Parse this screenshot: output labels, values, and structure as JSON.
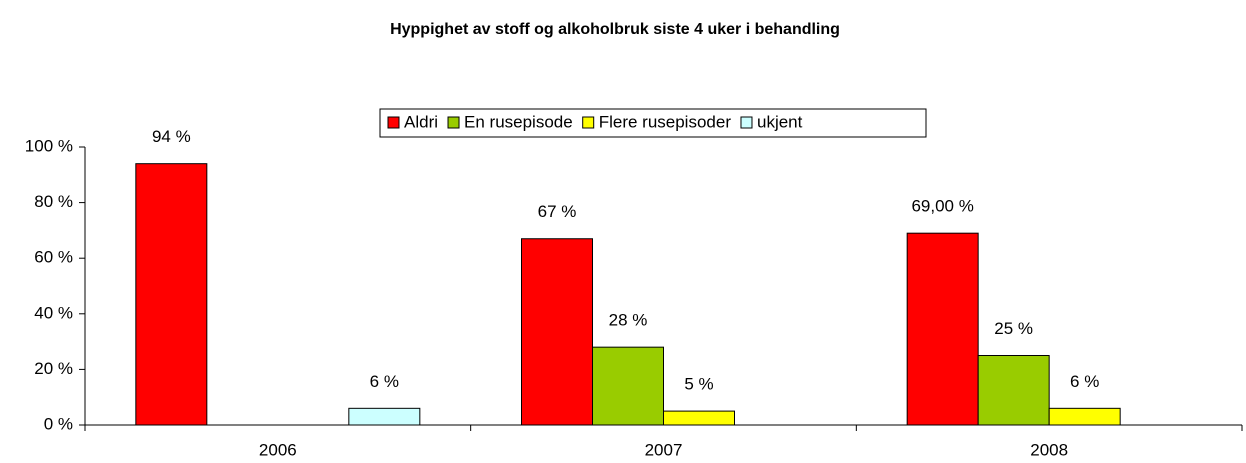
{
  "chart_data": {
    "type": "bar",
    "title": "Hyppighet av stoff og alkoholbruk siste 4 uker i behandling",
    "categories": [
      "2006",
      "2007",
      "2008"
    ],
    "series": [
      {
        "name": "Aldri",
        "color": "#ff0000",
        "values": [
          94,
          67,
          69
        ],
        "value_labels": [
          "94 %",
          "67 %",
          "69,00 %"
        ]
      },
      {
        "name": "En rusepisode",
        "color": "#99cc00",
        "values": [
          null,
          28,
          25
        ],
        "value_labels": [
          null,
          "28 %",
          "25 %"
        ]
      },
      {
        "name": "Flere rusepisoder",
        "color": "#ffff00",
        "values": [
          null,
          5,
          6
        ],
        "value_labels": [
          null,
          "5 %",
          "6 %"
        ]
      },
      {
        "name": "ukjent",
        "color": "#ccffff",
        "values": [
          6,
          null,
          null
        ],
        "value_labels": [
          "6 %",
          null,
          null
        ]
      }
    ],
    "ylim": [
      0,
      100
    ],
    "yticks": [
      {
        "value": 0,
        "label": "0 %"
      },
      {
        "value": 20,
        "label": "20 %"
      },
      {
        "value": 40,
        "label": "40 %"
      },
      {
        "value": 60,
        "label": "60 %"
      },
      {
        "value": 80,
        "label": "80 %"
      },
      {
        "value": 100,
        "label": "100 %"
      }
    ],
    "legend_position": "top"
  }
}
